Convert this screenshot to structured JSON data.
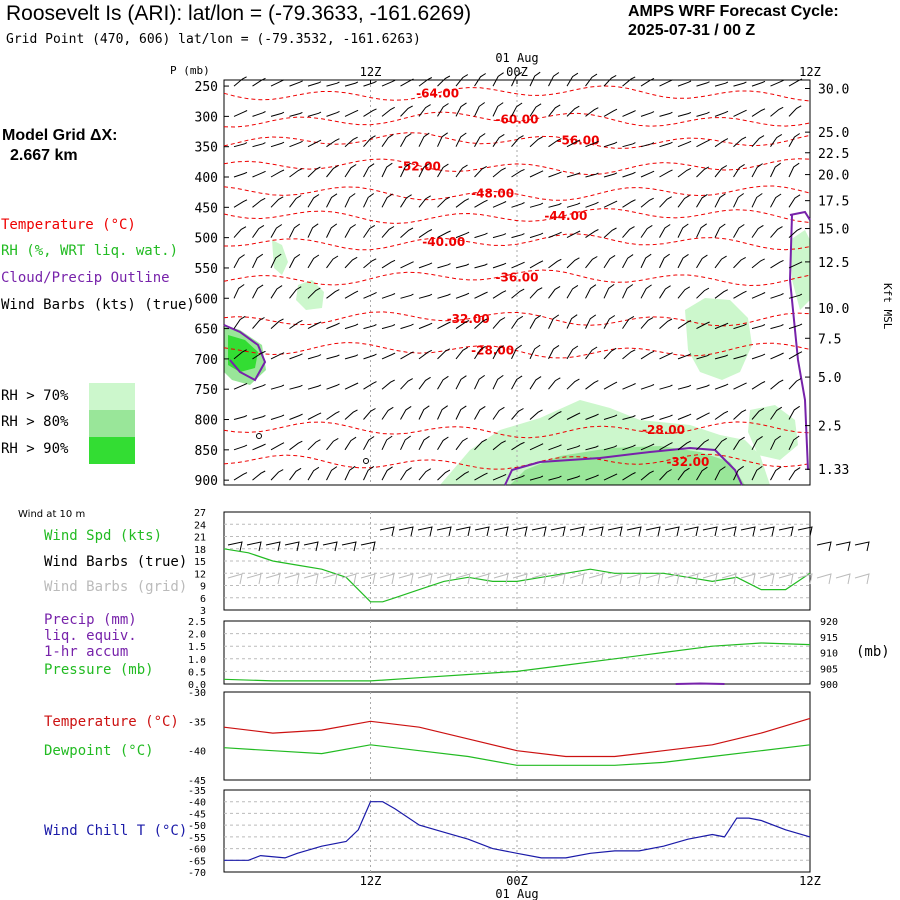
{
  "header": {
    "title": "Roosevelt Is (ARI):  lat/lon = (-79.3633, -161.6269)",
    "subtitle": "Grid Point (470, 606) lat/lon = (-79.3532, -161.6263)",
    "cycle_line1": "AMPS WRF Forecast Cycle:",
    "cycle_line2": "2025-07-31 / 00  Z"
  },
  "model_grid": {
    "label": "Model Grid ΔX:",
    "value": "2.667 km"
  },
  "legend": {
    "temperature": "Temperature (°C)",
    "rh": "RH (%, WRT liq. wat.)",
    "cloud": "Cloud/Precip Outline",
    "wind_barbs": "Wind Barbs (kts) (true)",
    "rh70": "RH > 70%",
    "rh80": "RH > 80%",
    "rh90": "RH > 90%"
  },
  "colors": {
    "temperature": "#ee0000",
    "rh": "#22bb22",
    "cloud": "#7722aa",
    "rh70": "#ccf7cc",
    "rh80": "#99e699",
    "rh90": "#33dd33",
    "wind_chill": "#1a1aa8",
    "pressure": "#22bb22"
  },
  "time_axis": {
    "top_ticks": [
      "12Z",
      "00Z",
      "12Z"
    ],
    "top_date": "01 Aug",
    "bottom_ticks": [
      "12Z",
      "00Z",
      "12Z"
    ],
    "bottom_date": "01 Aug"
  },
  "chart_data": [
    {
      "type": "line",
      "panel": "upper-air cross section",
      "ylabel": "P (mb)",
      "y2label": "Kft MSL",
      "pressure_ticks": [
        250,
        300,
        350,
        400,
        450,
        500,
        550,
        600,
        650,
        700,
        750,
        800,
        850,
        900
      ],
      "height_ticks": [
        "30.0",
        "25.0",
        "22.5",
        "20.0",
        "17.5",
        "15.0",
        "12.5",
        "10.0",
        "7.5",
        "5.0",
        "2.5",
        "1.33"
      ],
      "height_tick_pressures": [
        254,
        326,
        360,
        396,
        439,
        485,
        540,
        616,
        666,
        730,
        810,
        882
      ],
      "ylim": [
        240,
        908
      ],
      "xlim_hours": [
        0,
        48
      ],
      "temperature_contours": [
        {
          "label": "-64.00",
          "pressure": 262,
          "label_hour": 17.5
        },
        {
          "label": "-60.00",
          "pressure": 305,
          "label_hour": 24
        },
        {
          "label": "-56.00",
          "pressure": 340,
          "label_hour": 29
        },
        {
          "label": "-52.00",
          "pressure": 383,
          "label_hour": 16
        },
        {
          "label": "-48.00",
          "pressure": 427,
          "label_hour": 22
        },
        {
          "label": "-44.00",
          "pressure": 464,
          "label_hour": 28
        },
        {
          "label": "-40.00",
          "pressure": 507,
          "label_hour": 18
        },
        {
          "label": "-36.00",
          "pressure": 566,
          "label_hour": 24
        },
        {
          "label": "-32.00",
          "pressure": 634,
          "label_hour": 20
        },
        {
          "label": "-28.00",
          "pressure": 686,
          "label_hour": 22
        },
        {
          "label": "-28.00",
          "pressure": 817,
          "label_hour": 36
        },
        {
          "label": "-32.00",
          "pressure": 870,
          "label_hour": 38
        }
      ]
    },
    {
      "type": "line",
      "panel": "wind at 10 m",
      "title": "Wind at 10 m",
      "series": [
        {
          "name": "Wind Spd (kts)",
          "x": [
            0,
            2,
            4,
            6,
            8,
            10,
            12,
            13,
            14,
            16,
            18,
            20,
            22,
            24,
            26,
            28,
            30,
            32,
            34,
            36,
            38,
            40,
            42,
            44,
            46,
            48
          ],
          "values": [
            18,
            17,
            15,
            14,
            13,
            11,
            5,
            5,
            6,
            8,
            10,
            11,
            10,
            10,
            11,
            12,
            13,
            12,
            12,
            12,
            11,
            10,
            11,
            8,
            8,
            12
          ]
        }
      ],
      "labels": [
        "Wind Barbs (true)",
        "Wind Barbs (grid)"
      ],
      "yticks": [
        3,
        6,
        9,
        12,
        15,
        18,
        21,
        24,
        27
      ],
      "ylim": [
        3,
        27
      ]
    },
    {
      "type": "line",
      "panel": "precip and pressure",
      "series": [
        {
          "name": "Precip (mm)",
          "x": [
            37,
            39,
            41
          ],
          "values": [
            0.0,
            0.02,
            0.0
          ]
        },
        {
          "name": "Pressure (mb)",
          "x": [
            0,
            4,
            8,
            12,
            16,
            20,
            24,
            28,
            32,
            36,
            40,
            44,
            48
          ],
          "values": [
            901.5,
            901,
            901,
            901,
            902,
            903,
            904,
            906,
            908,
            910,
            912,
            913,
            912.5
          ]
        }
      ],
      "labels": [
        "liq. equiv.",
        "1-hr accum"
      ],
      "yticks": [
        0.0,
        0.5,
        1.0,
        1.5,
        2.0,
        2.5
      ],
      "ylim": [
        0,
        2.5
      ],
      "y2ticks": [
        900,
        905,
        910,
        915,
        920
      ],
      "y2lim": [
        900,
        920
      ],
      "y2label": "(mb)"
    },
    {
      "type": "line",
      "panel": "temperature and dewpoint",
      "series": [
        {
          "name": "Temperature (°C)",
          "x": [
            0,
            4,
            8,
            12,
            16,
            20,
            24,
            28,
            32,
            36,
            40,
            44,
            48
          ],
          "values": [
            -36,
            -37,
            -36.5,
            -35,
            -36,
            -38,
            -40,
            -41,
            -41,
            -40,
            -39,
            -37,
            -34.5
          ]
        },
        {
          "name": "Dewpoint (°C)",
          "x": [
            0,
            4,
            8,
            12,
            16,
            20,
            24,
            28,
            32,
            36,
            40,
            44,
            48
          ],
          "values": [
            -39.5,
            -40,
            -40.5,
            -39,
            -40,
            -41,
            -42.5,
            -42.5,
            -42.5,
            -42,
            -41,
            -40,
            -39
          ]
        }
      ],
      "yticks": [
        -45,
        -40,
        -35,
        -30
      ],
      "ylim": [
        -45,
        -30
      ]
    },
    {
      "type": "line",
      "panel": "wind chill",
      "series": [
        {
          "name": "Wind Chill T (°C)",
          "x": [
            0,
            2,
            3,
            5,
            6,
            8,
            10,
            11,
            12,
            13,
            14,
            16,
            18,
            20,
            22,
            24,
            26,
            28,
            30,
            32,
            34,
            36,
            38,
            40,
            41,
            42,
            43,
            44,
            46,
            48
          ],
          "values": [
            -65,
            -65,
            -63,
            -64,
            -62,
            -59,
            -57,
            -52,
            -40,
            -40,
            -43,
            -50,
            -53,
            -56,
            -60,
            -62,
            -64,
            -64,
            -62,
            -61,
            -61,
            -59,
            -56,
            -54,
            -55,
            -47,
            -47,
            -48,
            -52,
            -55
          ]
        }
      ],
      "yticks": [
        -70,
        -65,
        -60,
        -55,
        -50,
        -45,
        -40,
        -35
      ],
      "ylim": [
        -70,
        -35
      ]
    }
  ],
  "panel_labels": {
    "wind10m": "Wind at 10 m",
    "wind_spd": "Wind Spd (kts)",
    "barbs_true": "Wind Barbs (true)",
    "barbs_grid": "Wind Barbs (grid)",
    "precip": "Precip (mm)",
    "liq": "liq. equiv.",
    "accum": "1-hr accum",
    "pressure": "Pressure (mb)",
    "mb_unit": "(mb)",
    "temperature": "Temperature (°C)",
    "dewpoint": "Dewpoint (°C)",
    "wind_chill": "Wind Chill T (°C)",
    "p_axis": "P (mb)",
    "kft": "Kft MSL"
  }
}
